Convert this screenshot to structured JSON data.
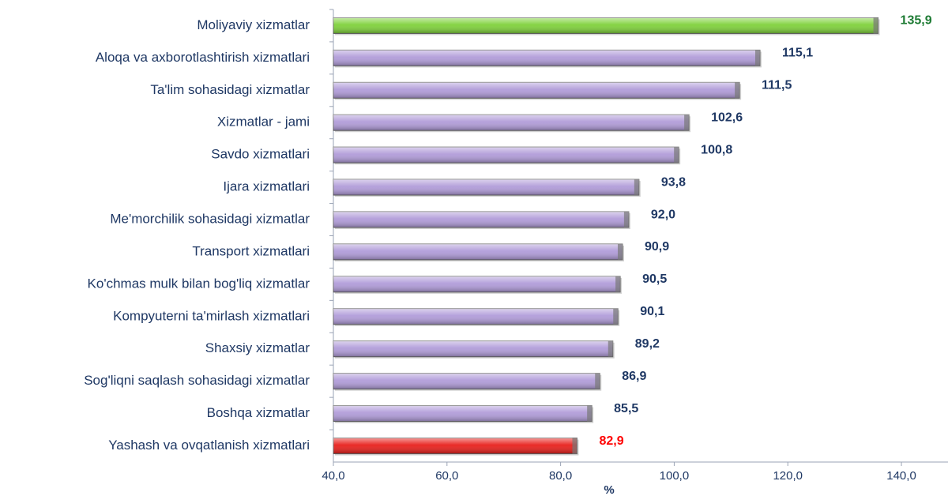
{
  "chart_data": {
    "type": "barh",
    "x_label": "%",
    "categories": [
      "Moliyaviy xizmatlar",
      "Aloqa va axborotlashtirish xizmatlari",
      "Ta'lim sohasidagi xizmatlar",
      "Xizmatlar - jami",
      "Savdo xizmatlari",
      "Ijara xizmatlari",
      "Me'morchilik sohasidagi xizmatlar",
      "Transport xizmatlari",
      "Ko'chmas mulk bilan bog'liq xizmatlar",
      "Kompyuterni ta'mirlash xizmatlari",
      "Shaxsiy xizmatlar",
      "Sog'liqni saqlash sohasidagi xizmatlar",
      "Boshqa xizmatlar",
      "Yashash va ovqatlanish xizmatlari"
    ],
    "values": [
      135.9,
      115.1,
      111.5,
      102.6,
      100.8,
      93.8,
      92.0,
      90.9,
      90.5,
      90.1,
      89.2,
      86.9,
      85.5,
      82.9
    ],
    "value_labels": [
      "135,9",
      "115,1",
      "111,5",
      "102,6",
      "100,8",
      "93,8",
      "92,0",
      "90,9",
      "90,5",
      "90,1",
      "89,2",
      "86,9",
      "85,5",
      "82,9"
    ],
    "colors": [
      "#7fd13b",
      "#b19cd9",
      "#b19cd9",
      "#b19cd9",
      "#b19cd9",
      "#b19cd9",
      "#b19cd9",
      "#b19cd9",
      "#b19cd9",
      "#b19cd9",
      "#b19cd9",
      "#b19cd9",
      "#b19cd9",
      "#e8201c"
    ],
    "label_colors": [
      "#1e7b34",
      "#1f3864",
      "#1f3864",
      "#1f3864",
      "#1f3864",
      "#1f3864",
      "#1f3864",
      "#1f3864",
      "#1f3864",
      "#1f3864",
      "#1f3864",
      "#1f3864",
      "#1f3864",
      "#ff0000"
    ],
    "xlim": [
      40,
      148.2
    ],
    "xticks": [
      {
        "value": 40,
        "label": "40,0"
      },
      {
        "value": 60,
        "label": "60,0"
      },
      {
        "value": 80,
        "label": "80,0"
      },
      {
        "value": 100,
        "label": "100,0"
      },
      {
        "value": 120,
        "label": "120,0"
      },
      {
        "value": 140,
        "label": "140,0"
      }
    ]
  }
}
